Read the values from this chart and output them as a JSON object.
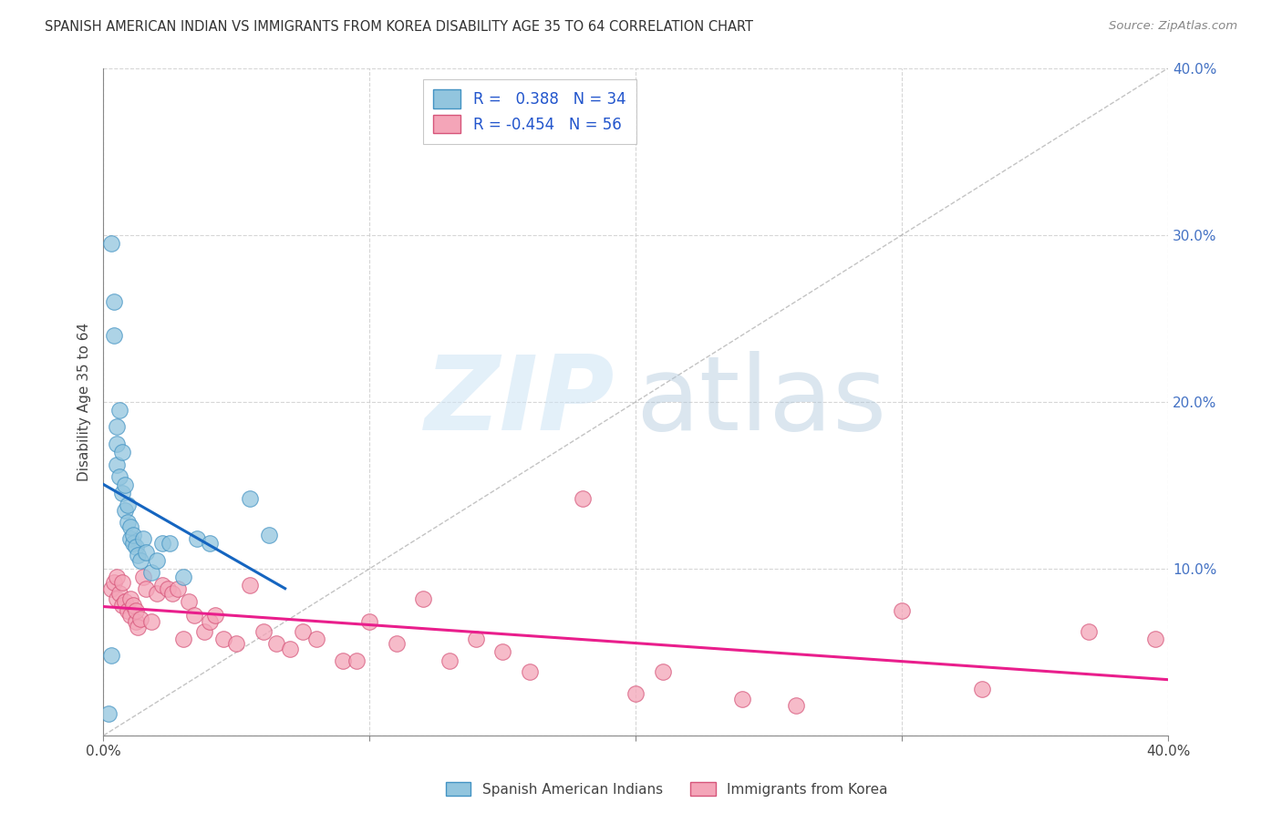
{
  "title": "SPANISH AMERICAN INDIAN VS IMMIGRANTS FROM KOREA DISABILITY AGE 35 TO 64 CORRELATION CHART",
  "source": "Source: ZipAtlas.com",
  "ylabel": "Disability Age 35 to 64",
  "xlim": [
    0.0,
    0.4
  ],
  "ylim": [
    0.0,
    0.4
  ],
  "xticks": [
    0.0,
    0.1,
    0.2,
    0.3,
    0.4
  ],
  "xtick_labels": [
    "0.0%",
    "",
    "",
    "",
    "40.0%"
  ],
  "yticks": [
    0.0,
    0.1,
    0.2,
    0.3,
    0.4
  ],
  "ytick_labels_right": [
    "",
    "10.0%",
    "20.0%",
    "30.0%",
    "40.0%"
  ],
  "blue_color": "#92c5de",
  "blue_edge": "#4393c3",
  "pink_color": "#f4a5b8",
  "pink_edge": "#d6557a",
  "trend_blue": "#1565c0",
  "trend_pink": "#e91e8c",
  "grid_color": "#cccccc",
  "series1_R": 0.388,
  "series1_N": 34,
  "series2_R": -0.454,
  "series2_N": 56,
  "blue_dots_x": [
    0.002,
    0.003,
    0.003,
    0.004,
    0.004,
    0.005,
    0.005,
    0.005,
    0.006,
    0.006,
    0.007,
    0.007,
    0.008,
    0.008,
    0.009,
    0.009,
    0.01,
    0.01,
    0.011,
    0.011,
    0.012,
    0.013,
    0.014,
    0.015,
    0.016,
    0.018,
    0.02,
    0.022,
    0.025,
    0.03,
    0.035,
    0.04,
    0.055,
    0.062
  ],
  "blue_dots_y": [
    0.013,
    0.048,
    0.295,
    0.24,
    0.26,
    0.162,
    0.175,
    0.185,
    0.155,
    0.195,
    0.145,
    0.17,
    0.135,
    0.15,
    0.128,
    0.138,
    0.118,
    0.125,
    0.115,
    0.12,
    0.113,
    0.108,
    0.105,
    0.118,
    0.11,
    0.098,
    0.105,
    0.115,
    0.115,
    0.095,
    0.118,
    0.115,
    0.142,
    0.12
  ],
  "pink_dots_x": [
    0.003,
    0.004,
    0.005,
    0.005,
    0.006,
    0.007,
    0.007,
    0.008,
    0.009,
    0.01,
    0.01,
    0.011,
    0.012,
    0.012,
    0.013,
    0.014,
    0.015,
    0.016,
    0.018,
    0.02,
    0.022,
    0.024,
    0.026,
    0.028,
    0.03,
    0.032,
    0.034,
    0.038,
    0.04,
    0.042,
    0.045,
    0.05,
    0.055,
    0.06,
    0.065,
    0.07,
    0.075,
    0.08,
    0.09,
    0.095,
    0.1,
    0.11,
    0.12,
    0.13,
    0.14,
    0.15,
    0.16,
    0.18,
    0.2,
    0.21,
    0.24,
    0.26,
    0.3,
    0.33,
    0.37,
    0.395
  ],
  "pink_dots_y": [
    0.088,
    0.092,
    0.082,
    0.095,
    0.085,
    0.078,
    0.092,
    0.08,
    0.075,
    0.082,
    0.072,
    0.078,
    0.068,
    0.075,
    0.065,
    0.07,
    0.095,
    0.088,
    0.068,
    0.085,
    0.09,
    0.088,
    0.085,
    0.088,
    0.058,
    0.08,
    0.072,
    0.062,
    0.068,
    0.072,
    0.058,
    0.055,
    0.09,
    0.062,
    0.055,
    0.052,
    0.062,
    0.058,
    0.045,
    0.045,
    0.068,
    0.055,
    0.082,
    0.045,
    0.058,
    0.05,
    0.038,
    0.142,
    0.025,
    0.038,
    0.022,
    0.018,
    0.075,
    0.028,
    0.062,
    0.058
  ],
  "blue_trend_x0": 0.0,
  "blue_trend_x1": 0.062,
  "pink_trend_x0": 0.0,
  "pink_trend_x1": 0.395
}
